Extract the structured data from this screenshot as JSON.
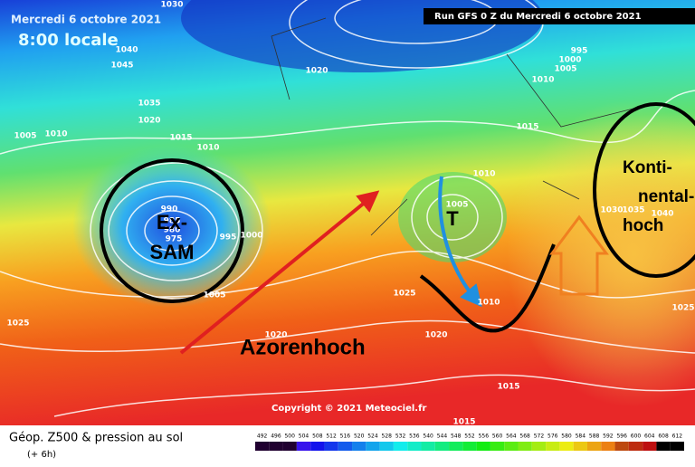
{
  "header": {
    "date": "Mercredi 6 octobre 2021",
    "time": "8:00 locale",
    "run": "Run GFS 0 Z du Mercredi 6 octobre 2021"
  },
  "annotations": {
    "low": [
      "Ex-",
      "SAM"
    ],
    "trough": "T",
    "azores_high": "Azorenhoch",
    "continental_high": [
      "Konti-",
      "nental-",
      "hoch"
    ]
  },
  "isobar_labels": [
    "1030",
    "1040",
    "1045",
    "1020",
    "1005",
    "1010",
    "1035",
    "1020",
    "1015",
    "1010",
    "990",
    "985",
    "980",
    "975",
    "995",
    "1000",
    "1005",
    "1025",
    "1020",
    "1020",
    "1025",
    "1010",
    "1005",
    "1010",
    "1015",
    "995",
    "1000",
    "1005",
    "1010",
    "1030",
    "1035",
    "1040",
    "1025",
    "1015",
    "1015"
  ],
  "footer": {
    "legend": "Géop. Z500 & pression au sol",
    "step": "(+ 6h)",
    "copyright": "Copyright © 2021 Meteociel.fr"
  },
  "colorbar": {
    "ticks": [
      492,
      496,
      500,
      504,
      508,
      512,
      516,
      520,
      524,
      528,
      532,
      536,
      540,
      544,
      548,
      552,
      556,
      560,
      564,
      568,
      572,
      576,
      580,
      584,
      588,
      592,
      596,
      600,
      604,
      608,
      612
    ]
  }
}
